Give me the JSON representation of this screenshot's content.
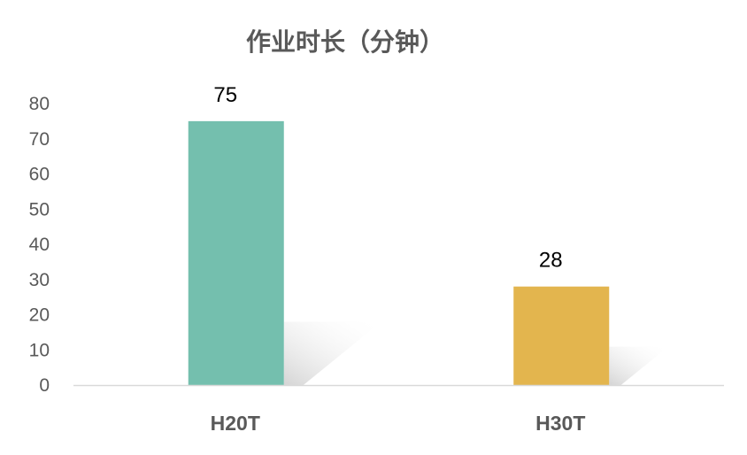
{
  "chart_data": {
    "type": "bar",
    "title": "作业时长（分钟）",
    "categories": [
      "H20T",
      "H30T"
    ],
    "values": [
      75,
      28
    ],
    "data_labels": [
      "75",
      "28"
    ],
    "colors": [
      "#74BFAE",
      "#E3B54E"
    ],
    "xlabel": "",
    "ylabel": "",
    "ylim": [
      0,
      80
    ],
    "yticks": [
      "0",
      "10",
      "20",
      "30",
      "40",
      "50",
      "60",
      "70",
      "80"
    ],
    "grid": false,
    "legend": "none"
  }
}
